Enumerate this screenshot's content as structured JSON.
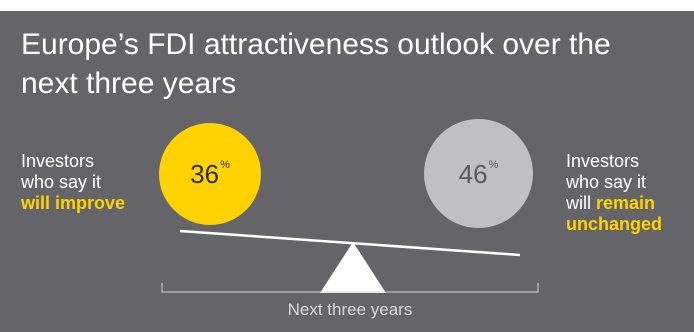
{
  "title": "Europe’s FDI attractiveness outlook over the next three years",
  "left": {
    "line1": "Investors",
    "line2": "who say it",
    "highlight": "will improve"
  },
  "right": {
    "line1": "Investors",
    "line2": "who say it",
    "prefix": "will",
    "highlight1": "remain",
    "highlight2": "unchanged"
  },
  "period_label": "Next three years",
  "chart_data": {
    "type": "balance",
    "series": [
      {
        "name": "will improve",
        "value": 36,
        "unit": "%",
        "color": "#ffd200"
      },
      {
        "name": "remain unchanged",
        "value": 46,
        "unit": "%",
        "color": "#c0c0c2"
      }
    ]
  }
}
